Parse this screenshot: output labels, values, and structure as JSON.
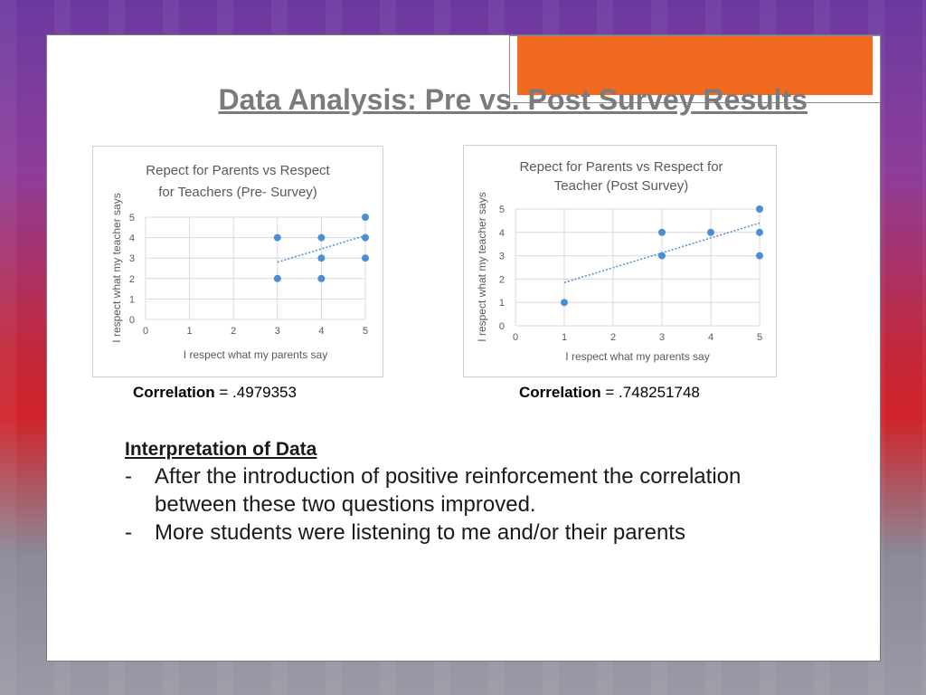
{
  "slide": {
    "title": "Data Analysis: Pre vs. Post Survey Results",
    "colors": {
      "accent": "#f16a20",
      "point": "#4a8fd6",
      "trend": "#4a8fd6"
    }
  },
  "chart_data": [
    {
      "type": "scatter",
      "title_lines": [
        "Repect for Parents vs Respect",
        "for Teachers (Pre- Survey)"
      ],
      "xlabel": "I respect what my parents say",
      "ylabel": "I respect what my teacher says",
      "xlim": [
        0,
        5
      ],
      "ylim": [
        0,
        5
      ],
      "x_ticks": [
        "0",
        "1",
        "2",
        "3",
        "4",
        "5"
      ],
      "y_ticks": [
        "0",
        "1",
        "2",
        "3",
        "4",
        "5"
      ],
      "points": [
        [
          3,
          4
        ],
        [
          3,
          2
        ],
        [
          4,
          4
        ],
        [
          4,
          3
        ],
        [
          4,
          2
        ],
        [
          5,
          5
        ],
        [
          5,
          4
        ],
        [
          5,
          3
        ]
      ],
      "trendline": {
        "x": [
          3,
          5
        ],
        "y": [
          2.8,
          4.1
        ]
      },
      "grid": true,
      "correlation_label": "Correlation",
      "correlation_value": " = .4979353"
    },
    {
      "type": "scatter",
      "title_lines": [
        "Repect for Parents vs Respect for",
        "Teacher (Post Survey)"
      ],
      "xlabel": "I respect what my parents say",
      "ylabel": "I respect what my teacher says",
      "xlim": [
        0,
        5
      ],
      "ylim": [
        0,
        5
      ],
      "x_ticks": [
        "0",
        "1",
        "2",
        "3",
        "4",
        "5"
      ],
      "y_ticks": [
        "0",
        "1",
        "2",
        "3",
        "4",
        "5"
      ],
      "points": [
        [
          1,
          1
        ],
        [
          3,
          4
        ],
        [
          3,
          3
        ],
        [
          4,
          4
        ],
        [
          5,
          5
        ],
        [
          5,
          4
        ],
        [
          5,
          3
        ]
      ],
      "trendline": {
        "x": [
          1,
          5
        ],
        "y": [
          1.85,
          4.4
        ]
      },
      "grid": true,
      "correlation_label": "Correlation",
      "correlation_value": " = .748251748"
    }
  ],
  "interpretation": {
    "heading": "Interpretation of Data",
    "bullets": [
      {
        "dash": "-",
        "text": "After the introduction of positive reinforcement the correlation between these two questions improved."
      },
      {
        "dash": "-",
        "text": "More students were listening to me and/or their parents"
      }
    ]
  }
}
